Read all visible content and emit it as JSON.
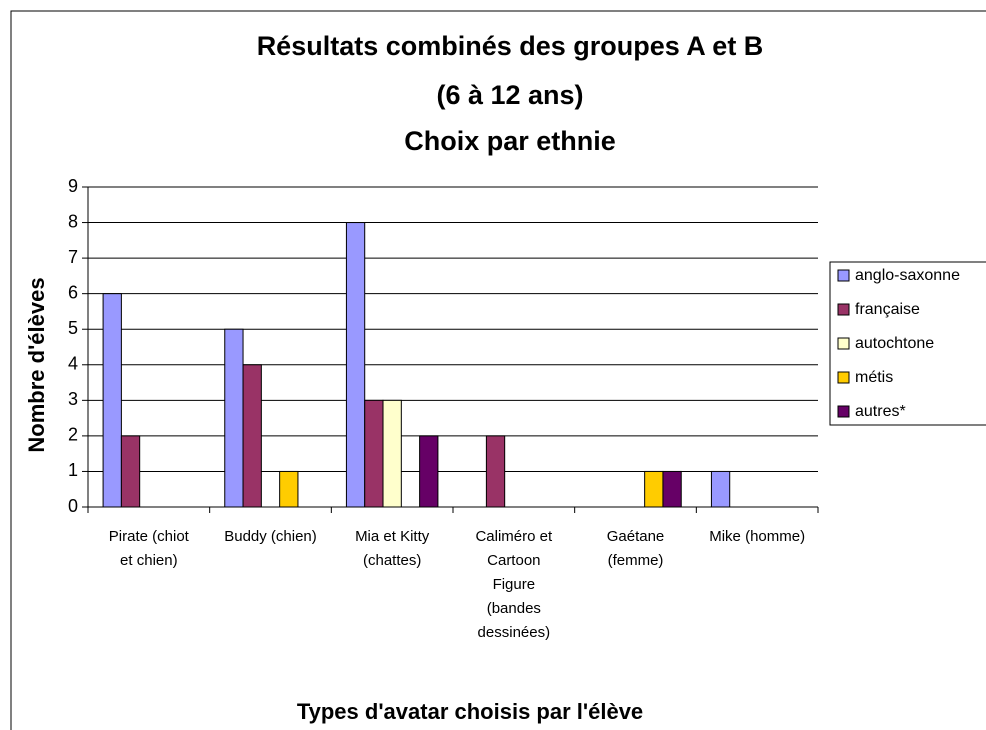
{
  "chart_data": {
    "type": "bar",
    "title": [
      "Résultats combinés des groupes A et B",
      "(6 à 12 ans)",
      "Choix par ethnie"
    ],
    "x_label": "Types d'avatar choisis par l'élève",
    "y_label": "Nombre d'élèves",
    "categories": [
      "Pirate (chiot et chien)",
      "Buddy (chien)",
      "Mia et Kitty (chattes)",
      "Caliméro et Cartoon Figure (bandes dessinées)",
      "Gaétane (femme)",
      "Mike (homme)"
    ],
    "series": [
      {
        "name": "anglo-saxonne",
        "color": "#9999ff",
        "values": [
          6,
          5,
          8,
          0,
          0,
          1
        ]
      },
      {
        "name": "française",
        "color": "#993366",
        "values": [
          2,
          4,
          3,
          2,
          0,
          0
        ]
      },
      {
        "name": "autochtone",
        "color": "#ffffcc",
        "values": [
          0,
          0,
          3,
          0,
          0,
          0
        ]
      },
      {
        "name": "métis",
        "color": "#ffcc00",
        "values": [
          0,
          1,
          0,
          0,
          1,
          0
        ]
      },
      {
        "name": "autres*",
        "color": "#660066",
        "values": [
          0,
          0,
          2,
          0,
          1,
          0
        ]
      }
    ],
    "ylim": [
      0,
      9
    ],
    "yticks": [
      0,
      1,
      2,
      3,
      4,
      5,
      6,
      7,
      8,
      9
    ],
    "grid": true,
    "legend": "right"
  }
}
